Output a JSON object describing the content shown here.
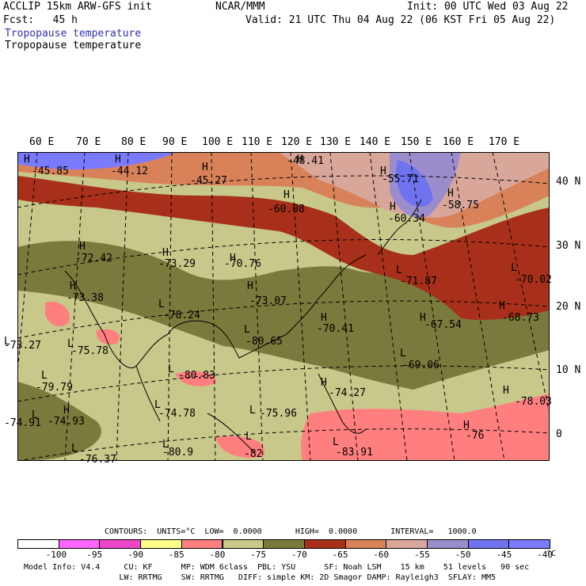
{
  "header": {
    "model": "ACCLIP 15km ARW-GFS init",
    "forecast": "Fcst:   45 h",
    "center": "NCAR/MMM",
    "init": "Init: 00 UTC Wed 03 Aug 22",
    "valid": "Valid: 21 UTC Thu 04 Aug 22 (06 KST Fri 05 Aug 22)",
    "field1": "Tropopause temperature",
    "field2": "Tropopause temperature"
  },
  "lon_labels": [
    "60 E",
    "70 E",
    "80 E",
    "90 E",
    "100 E",
    "110 E",
    "120 E",
    "130 E",
    "140 E",
    "150 E",
    "160 E",
    "170 E"
  ],
  "lat_labels": [
    "40 N",
    "30 N",
    "20 N",
    "10 N",
    "0"
  ],
  "map_values": [
    {
      "mark": "H",
      "value": "-45.85"
    },
    {
      "mark": "H",
      "value": "-44.12"
    },
    {
      "mark": "H",
      "value": "-45.27"
    },
    {
      "mark": "H",
      "value": "-48.41"
    },
    {
      "mark": "H",
      "value": "-60.08"
    },
    {
      "mark": "H",
      "value": "-55.71"
    },
    {
      "mark": "H",
      "value": "-58.75"
    },
    {
      "mark": "H",
      "value": "-60.34"
    },
    {
      "mark": "H",
      "value": "-72.42"
    },
    {
      "mark": "H",
      "value": "-73.29"
    },
    {
      "mark": "H",
      "value": "-70.76"
    },
    {
      "mark": "L",
      "value": "-71.87"
    },
    {
      "mark": "L",
      "value": "-70.02"
    },
    {
      "mark": "H",
      "value": "-73.38"
    },
    {
      "mark": "H",
      "value": "-73.07"
    },
    {
      "mark": "L",
      "value": "-78.24"
    },
    {
      "mark": "H",
      "value": "-70.41"
    },
    {
      "mark": "H",
      "value": "-67.54"
    },
    {
      "mark": "H",
      "value": "-68.73"
    },
    {
      "mark": "L",
      "value": "-73.27"
    },
    {
      "mark": "L",
      "value": "-75.78"
    },
    {
      "mark": "L",
      "value": "-80.65"
    },
    {
      "mark": "L",
      "value": "-69.06"
    },
    {
      "mark": "L",
      "value": "-80.83"
    },
    {
      "mark": "L",
      "value": "-79.79"
    },
    {
      "mark": "H",
      "value": "-74.27"
    },
    {
      "mark": "L",
      "value": "-74.78"
    },
    {
      "mark": "H",
      "value": "-78.03"
    },
    {
      "mark": "L",
      "value": "-74.91"
    },
    {
      "mark": "H",
      "value": "-74.93"
    },
    {
      "mark": "L",
      "value": "-75.96"
    },
    {
      "mark": "H",
      "value": "-76"
    },
    {
      "mark": "L",
      "value": "-76.37"
    },
    {
      "mark": "L",
      "value": "-80.9"
    },
    {
      "mark": "L",
      "value": "-82"
    },
    {
      "mark": "L",
      "value": "-83.91"
    }
  ],
  "contours": {
    "line": "CONTOURS:  UNITS=°C  LOW=  0.0000       HIGH=  0.0000       INTERVAL=   1000.0"
  },
  "colorbar": {
    "colors": [
      "#ffffff",
      "#ff66ff",
      "#ee44cc",
      "#ffff88",
      "#ff7f7f",
      "#c8c88a",
      "#7a7a3c",
      "#a8301a",
      "#d9825a",
      "#d9a69a",
      "#9b8ccc",
      "#6f73f0",
      "#7a7aff"
    ],
    "labels": [
      "-100",
      "-95",
      "-90",
      "-85",
      "-80",
      "-75",
      "-70",
      "-65",
      "-60",
      "-55",
      "-50",
      "-45",
      "-40"
    ],
    "unit": "°C"
  },
  "footer": {
    "line1": "Model Info: V4.4     CU: KF      MP: WDM 6class  PBL: YSU      SF: Noah LSM    15 km    51 levels   90 sec",
    "line2": "                    LW: RRTMG    SW: RRTMG   DIFF: simple KM: 2D Smagor DAMP: Rayleigh3  SFLAY: MM5"
  }
}
